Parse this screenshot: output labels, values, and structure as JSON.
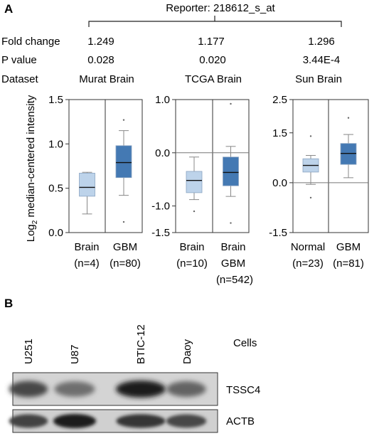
{
  "panel_a": {
    "letter": "A",
    "reporter": "Reporter: 218612_s_at",
    "row_labels": {
      "fold": "Fold change",
      "pval": "P value",
      "dataset": "Dataset"
    },
    "ylabel_main": "Log",
    "ylabel_sub": "2",
    "ylabel_rest": " median-centered intensity"
  },
  "chart_data": [
    {
      "type": "box",
      "dataset": "Murat Brain",
      "fold_change": "1.249",
      "p_value": "0.028",
      "ylim": [
        0,
        1.5
      ],
      "yticks": [
        "0.0",
        "0.5",
        "1.0",
        "1.5"
      ],
      "ytick_values": [
        0,
        0.5,
        1.0,
        1.5
      ],
      "categories": [
        {
          "label": "Brain",
          "n": "(n=4)",
          "color": "#bdd3ea",
          "min": 0.21,
          "q1": 0.41,
          "median": 0.51,
          "q3": 0.67,
          "max": 0.68,
          "outliers": []
        },
        {
          "label": "GBM",
          "n": "(n=80)",
          "color": "#4479b3",
          "min": 0.42,
          "q1": 0.62,
          "median": 0.79,
          "q3": 0.98,
          "max": 1.15,
          "outliers": [
            1.27,
            0.12
          ]
        }
      ]
    },
    {
      "type": "box",
      "dataset": "TCGA Brain",
      "fold_change": "1.177",
      "p_value": "0.020",
      "ylim": [
        -1.5,
        1.0
      ],
      "yticks": [
        "-1.5",
        "-1.0",
        "0.0",
        "1.0"
      ],
      "ytick_values": [
        -1.5,
        -1.0,
        0.0,
        1.0
      ],
      "zero_line": 0,
      "categories": [
        {
          "label": "Brain",
          "n": "(n=10)",
          "color": "#bdd3ea",
          "min": -0.88,
          "q1": -0.75,
          "median": -0.52,
          "q3": -0.35,
          "max": -0.08,
          "outliers": [
            -1.1
          ]
        },
        {
          "label": "Brain GBM",
          "label_lines": [
            "Brain",
            "GBM"
          ],
          "n": "(n=542)",
          "color": "#4479b3",
          "min": -0.82,
          "q1": -0.62,
          "median": -0.37,
          "q3": -0.08,
          "max": 0.12,
          "outliers": [
            0.92,
            -1.32
          ]
        }
      ]
    },
    {
      "type": "box",
      "dataset": "Sun Brain",
      "fold_change": "1.296",
      "p_value": "3.44E-4",
      "ylim": [
        -1.5,
        2.5
      ],
      "yticks": [
        "-1.5",
        "0.0",
        "1.5",
        "2.5"
      ],
      "ytick_values": [
        -1.5,
        0.0,
        1.5,
        2.5
      ],
      "zero_line": 0,
      "categories": [
        {
          "label": "Normal",
          "n": "(n=23)",
          "color": "#bdd3ea",
          "min": -0.05,
          "q1": 0.32,
          "median": 0.52,
          "q3": 0.72,
          "max": 0.82,
          "outliers": [
            1.4,
            -0.45
          ]
        },
        {
          "label": "GBM",
          "n": "(n=81)",
          "color": "#4479b3",
          "min": 0.15,
          "q1": 0.55,
          "median": 0.88,
          "q3": 1.18,
          "max": 1.45,
          "outliers": [
            1.95
          ]
        }
      ]
    }
  ],
  "panel_b": {
    "letter": "B",
    "cells_label": "Cells",
    "lanes": [
      "U251",
      "U87",
      "BTIC-12",
      "Daoy"
    ],
    "blots": [
      {
        "label": "TSSC4",
        "intensity": [
          0.8,
          0.6,
          1.0,
          0.65
        ]
      },
      {
        "label": "ACTB",
        "intensity": [
          0.82,
          1.0,
          0.88,
          0.8
        ]
      }
    ]
  }
}
